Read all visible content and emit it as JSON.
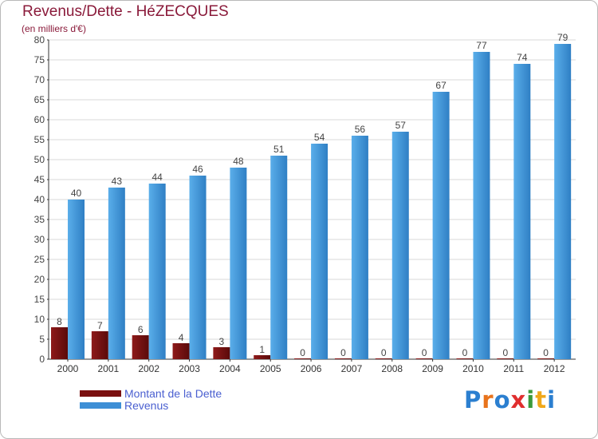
{
  "chart_data": {
    "type": "bar",
    "title": "Revenus/Dette - HéZECQUES",
    "subtitle": "(en milliers d'€)",
    "categories": [
      "2000",
      "2001",
      "2002",
      "2003",
      "2004",
      "2005",
      "2006",
      "2007",
      "2008",
      "2009",
      "2010",
      "2011",
      "2012"
    ],
    "series": [
      {
        "name": "Montant de la Dette",
        "color": "#7a1010",
        "values": [
          8,
          7,
          6,
          4,
          3,
          1,
          0,
          0,
          0,
          0,
          0,
          0,
          0
        ]
      },
      {
        "name": "Revenus",
        "color": "#3d8fd6",
        "values": [
          40,
          43,
          44,
          46,
          48,
          51,
          54,
          56,
          57,
          67,
          77,
          74,
          79
        ]
      }
    ],
    "ylim": [
      0,
      80
    ],
    "yticks": [
      0,
      5,
      10,
      15,
      20,
      25,
      30,
      35,
      40,
      45,
      50,
      55,
      60,
      65,
      70,
      75,
      80
    ],
    "grid": true,
    "legend_position": "bottom-left"
  },
  "colors": {
    "title": "#8a1a3a",
    "legend_text": "#4a5fd0",
    "gridline": "#d8d8d8"
  },
  "logo": {
    "letters": [
      "P",
      "r",
      "o",
      "x",
      "i",
      "t",
      "i"
    ],
    "colors": [
      "#2b7fd0",
      "#e8731c",
      "#2b7fd0",
      "#e02e2e",
      "#3b9a3b",
      "#f0a81b",
      "#2b7fd0"
    ]
  }
}
